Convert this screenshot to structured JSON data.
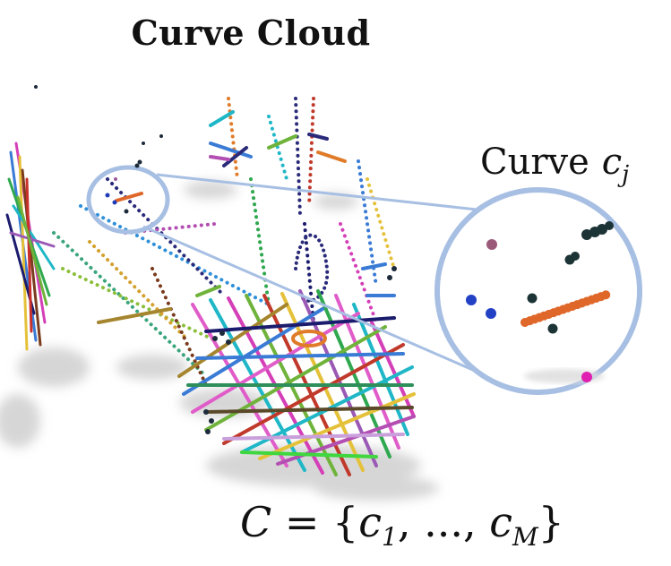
{
  "figure": {
    "title": "Curve Cloud",
    "zoom_label_prefix": "Curve",
    "zoom_label_var": "c",
    "zoom_label_sub": "j",
    "set_expression": {
      "lhs": "C",
      "eq": " = {",
      "c1": "c",
      "c1_sub": "1",
      "sep": ", ..., ",
      "cM": "c",
      "cM_sub": "M",
      "close": "}"
    }
  },
  "colors": {
    "circle_stroke": "#a7bfe3",
    "highlight_curve": "#e0672a",
    "shadow": "#cfcfcf"
  }
}
